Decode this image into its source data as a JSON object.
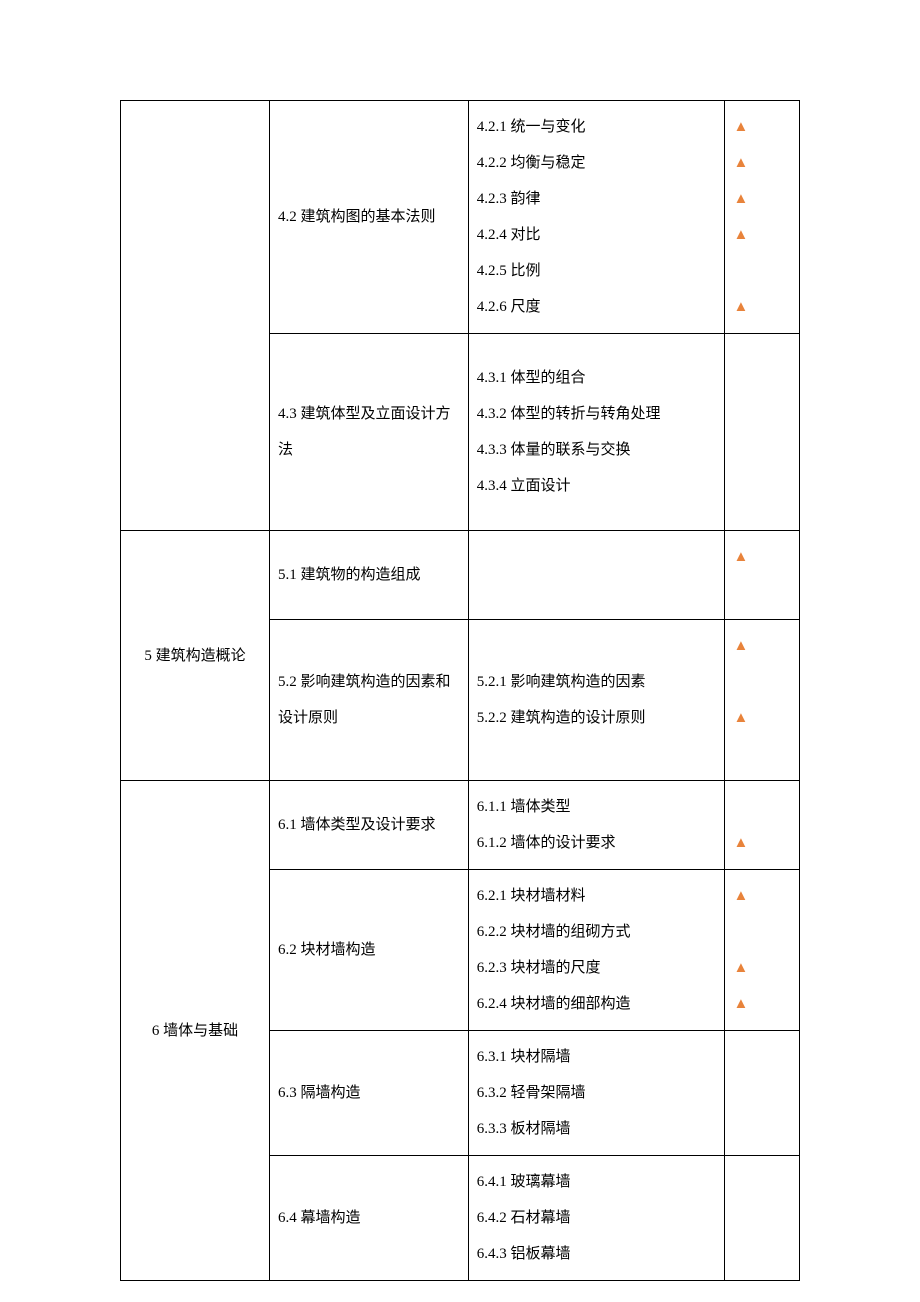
{
  "marker_color": "#e8833b",
  "text_color": "#000000",
  "border_color": "#000000",
  "background_color": "#ffffff",
  "font_family": "SimSun",
  "font_size_pt": 11,
  "line_height": 2.4,
  "columns": {
    "col1_width_pct": 18,
    "col2_width_pct": 24,
    "col3_width_pct": 31,
    "col4_width_pct": 9
  },
  "rows": [
    {
      "col1": "",
      "col1_rowspan": 2,
      "sections": [
        {
          "col2": "4.2  建筑构图的基本法则",
          "col3": [
            "4.2.1  统一与变化",
            "4.2.2  均衡与稳定",
            "4.2.3  韵律",
            "4.2.4  对比",
            "4.2.5  比例",
            "4.2.6  尺度"
          ],
          "col4": [
            true,
            true,
            true,
            true,
            false,
            true
          ]
        },
        {
          "col2": "4.3  建筑体型及立面设计方法",
          "col3": [
            "4.3.1  体型的组合",
            "4.3.2  体型的转折与转角处理",
            "4.3.3  体量的联系与交换",
            "4.3.4  立面设计"
          ],
          "col4": [
            false,
            false,
            false,
            false
          ]
        }
      ]
    },
    {
      "col1": "5 建筑构造概论",
      "col1_rowspan": 2,
      "sections": [
        {
          "col2": "5.1  建筑物的构造组成",
          "col3": [
            "",
            ""
          ],
          "col4": [
            true,
            false
          ]
        },
        {
          "col2": "5.2 影响建筑构造的因素和设计原则",
          "col3": [
            "5.2.1  影响建筑构造的因素",
            "5.2.2  建筑构造的设计原则"
          ],
          "col4": [
            true,
            true
          ]
        }
      ]
    },
    {
      "col1": "6  墙体与基础",
      "col1_rowspan": 4,
      "sections": [
        {
          "col2": "6.1  墙体类型及设计要求",
          "col3": [
            "6.1.1  墙体类型",
            "6.1.2  墙体的设计要求"
          ],
          "col4": [
            false,
            true
          ]
        },
        {
          "col2": "6.2  块材墙构造",
          "col3": [
            "6.2.1  块材墙材料",
            "6.2.2  块材墙的组砌方式",
            "6.2.3  块材墙的尺度",
            "6.2.4  块材墙的细部构造"
          ],
          "col4": [
            true,
            false,
            true,
            true
          ]
        },
        {
          "col2": "6.3  隔墙构造",
          "col3": [
            "6.3.1  块材隔墙",
            "6.3.2  轻骨架隔墙",
            "6.3.3  板材隔墙"
          ],
          "col4": [
            false,
            false,
            false
          ]
        },
        {
          "col2": "6.4  幕墙构造",
          "col3": [
            "6.4.1  玻璃幕墙",
            "6.4.2  石材幕墙",
            "6.4.3  铝板幕墙"
          ],
          "col4": [
            false,
            false,
            false
          ]
        }
      ]
    }
  ]
}
